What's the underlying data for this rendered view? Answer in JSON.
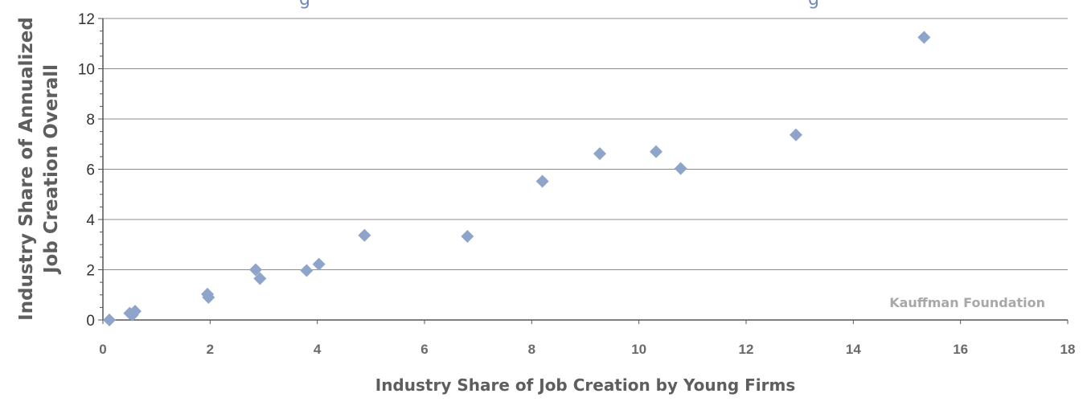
{
  "chart_data": {
    "type": "scatter",
    "title_fragment": "g",
    "xlabel": "Industry Share of Job Creation by Young Firms",
    "ylabel_lines": [
      "Industry Share of Annualized",
      "Job Creation Overall"
    ],
    "watermark": "Kauffman Foundation",
    "xlim": [
      0,
      18
    ],
    "ylim": [
      0,
      12
    ],
    "x_ticks": [
      0,
      2,
      4,
      6,
      8,
      10,
      12,
      14,
      16,
      18
    ],
    "y_ticks": [
      0,
      2,
      4,
      6,
      8,
      10,
      12
    ],
    "grid": "horizontal",
    "marker": "diamond",
    "colors": {
      "marker": "#8ea4cb",
      "grid": "#8c8c8c",
      "axis": "#555555",
      "title": "#6f88bf"
    },
    "points": [
      {
        "x": 0.12,
        "y": 0.0
      },
      {
        "x": 0.5,
        "y": 0.27
      },
      {
        "x": 0.55,
        "y": 0.2
      },
      {
        "x": 0.6,
        "y": 0.35
      },
      {
        "x": 1.95,
        "y": 1.03
      },
      {
        "x": 1.97,
        "y": 0.9
      },
      {
        "x": 2.85,
        "y": 2.0
      },
      {
        "x": 2.93,
        "y": 1.65
      },
      {
        "x": 3.8,
        "y": 1.97
      },
      {
        "x": 4.03,
        "y": 2.22
      },
      {
        "x": 4.88,
        "y": 3.37
      },
      {
        "x": 6.8,
        "y": 3.33
      },
      {
        "x": 8.2,
        "y": 5.52
      },
      {
        "x": 9.27,
        "y": 6.62
      },
      {
        "x": 10.32,
        "y": 6.7
      },
      {
        "x": 10.78,
        "y": 6.03
      },
      {
        "x": 12.93,
        "y": 7.37
      },
      {
        "x": 15.32,
        "y": 11.25
      }
    ]
  }
}
